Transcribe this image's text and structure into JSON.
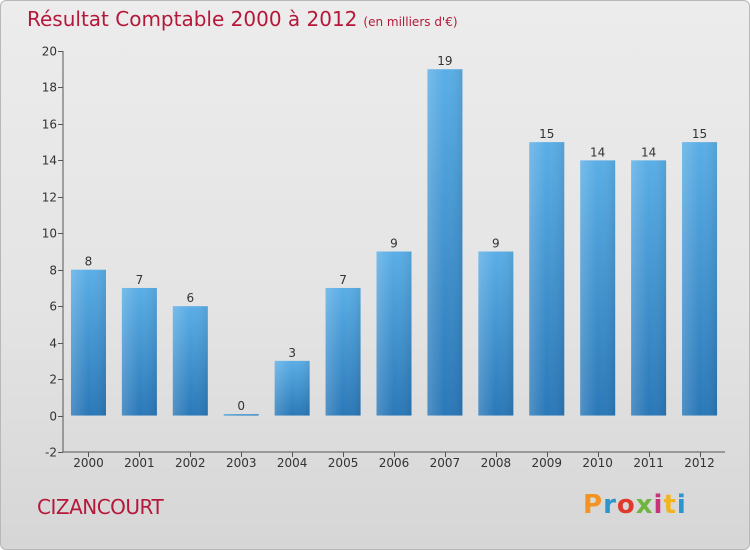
{
  "chart_data": {
    "type": "bar",
    "title": "Résultat Comptable 2000 à 2012",
    "subtitle": "(en milliers d'€)",
    "categories": [
      "2000",
      "2001",
      "2002",
      "2003",
      "2004",
      "2005",
      "2006",
      "2007",
      "2008",
      "2009",
      "2010",
      "2011",
      "2012"
    ],
    "values": [
      8,
      7,
      6,
      0,
      3,
      7,
      9,
      19,
      9,
      15,
      14,
      14,
      15
    ],
    "value_labels": [
      "8",
      "7",
      "6",
      "0",
      "3",
      "7",
      "9",
      "19",
      "9",
      "15",
      "14",
      "14",
      "15"
    ],
    "ylim": [
      -2,
      20
    ],
    "yticks": [
      -2,
      0,
      2,
      4,
      6,
      8,
      10,
      12,
      14,
      16,
      18,
      20
    ],
    "xlabel": "",
    "ylabel": "",
    "grid": false,
    "bar_color_top": "#5aaee6",
    "bar_color_bottom": "#2a78b8"
  },
  "footer": {
    "commune": "CIZANCOURT",
    "logo_letters": [
      "P",
      "r",
      "o",
      "x",
      "i",
      "t",
      "i"
    ]
  },
  "colors": {
    "title": "#b5183a",
    "axis": "#555555"
  }
}
